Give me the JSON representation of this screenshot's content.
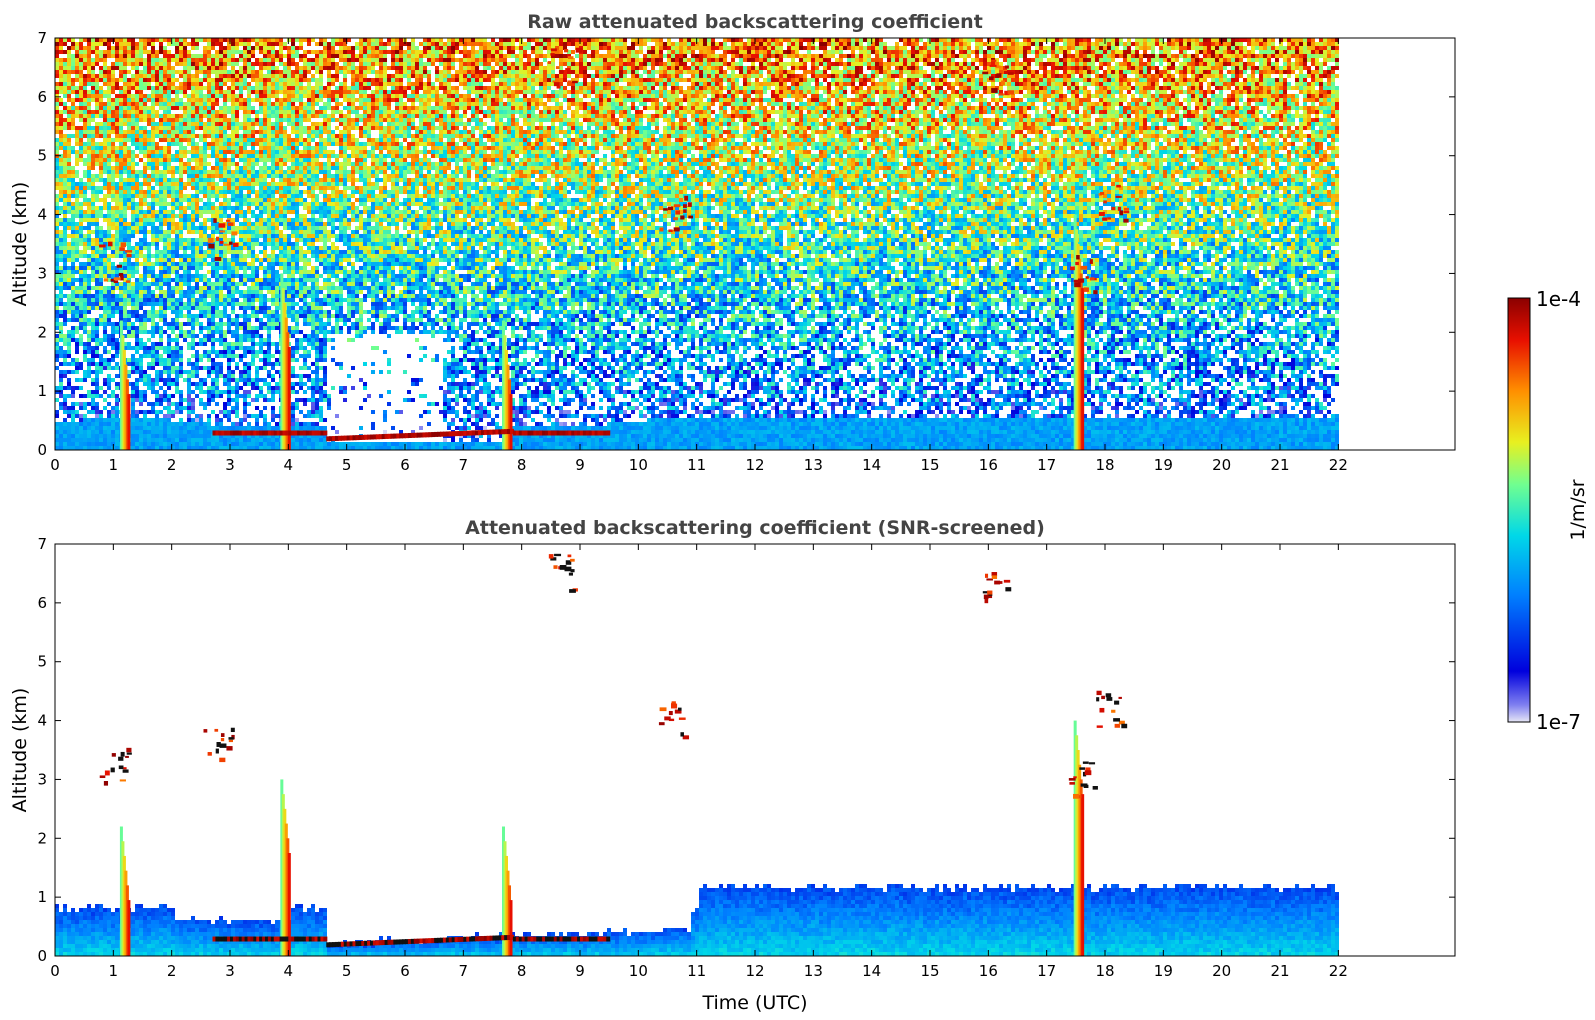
{
  "chart_data": [
    {
      "type": "heatmap",
      "title": "Raw attenuated backscattering coefficient",
      "xlabel": "",
      "ylabel": "Altitude (km)",
      "xlim": [
        0,
        24
      ],
      "ylim": [
        0,
        7
      ],
      "x_ticks": [
        "0",
        "1",
        "2",
        "3",
        "4",
        "5",
        "6",
        "7",
        "8",
        "9",
        "10",
        "11",
        "12",
        "13",
        "14",
        "15",
        "16",
        "17",
        "18",
        "19",
        "20",
        "21",
        "22"
      ],
      "y_ticks": [
        "0",
        "1",
        "2",
        "3",
        "4",
        "5",
        "6",
        "7"
      ],
      "data_extent_hours": [
        0,
        22
      ],
      "features": {
        "boundary_layer_top_km": 0.55,
        "noise_increases_with_altitude": true,
        "cirrus_patches_km": [
          [
            1.0,
            3.2
          ],
          [
            2.8,
            3.6
          ],
          [
            10.6,
            4.0
          ],
          [
            17.6,
            3.0
          ],
          [
            18.1,
            4.2
          ],
          [
            8.7,
            6.5
          ],
          [
            16.1,
            6.3
          ]
        ],
        "rain_shafts_hours": [
          1.25,
          4.0,
          7.8,
          17.6
        ]
      }
    },
    {
      "type": "heatmap",
      "title": "Attenuated backscattering coefficient (SNR-screened)",
      "xlabel": "Time (UTC)",
      "ylabel": "Altitude (km)",
      "xlim": [
        0,
        24
      ],
      "ylim": [
        0,
        7
      ],
      "x_ticks": [
        "0",
        "1",
        "2",
        "3",
        "4",
        "5",
        "6",
        "7",
        "8",
        "9",
        "10",
        "11",
        "12",
        "13",
        "14",
        "15",
        "16",
        "17",
        "18",
        "19",
        "20",
        "21",
        "22"
      ],
      "y_ticks": [
        "0",
        "1",
        "2",
        "3",
        "4",
        "5",
        "6",
        "7"
      ],
      "data_extent_hours": [
        0,
        22
      ],
      "features": {
        "boundary_layer_top_km_morning": 0.85,
        "boundary_layer_top_km_afternoon": 1.2,
        "low_cloud_base_km": 0.25
      }
    }
  ],
  "colorbar": {
    "label": "1/m/sr",
    "max_label": "1e-4",
    "min_label": "1e-7",
    "scale": "log",
    "range": [
      1e-07,
      0.0001
    ],
    "colormap": [
      "#e6e6f5",
      "#0000dd",
      "#0080ff",
      "#00d8e8",
      "#70ff90",
      "#e8f020",
      "#ff9000",
      "#e81000",
      "#8b0000"
    ]
  }
}
